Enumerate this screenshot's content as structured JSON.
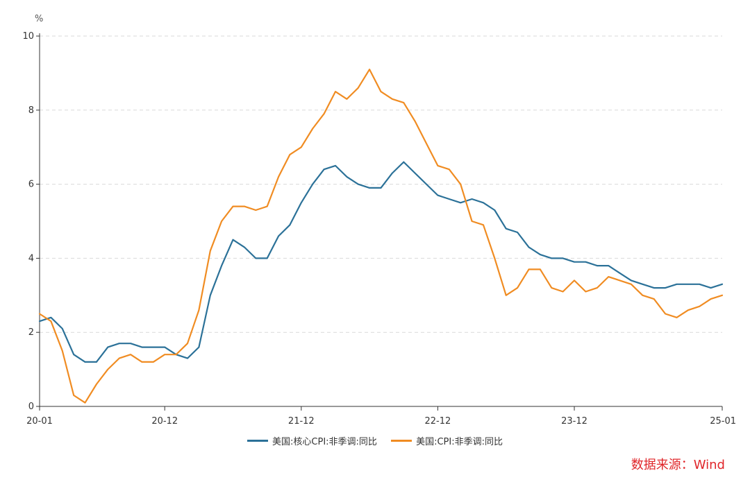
{
  "chart_data": {
    "type": "line",
    "unit_label": "%",
    "ylim": [
      0,
      10
    ],
    "yticks": [
      0,
      2,
      4,
      6,
      8,
      10
    ],
    "grid": true,
    "legend_position": "bottom",
    "xticks": [
      {
        "index": 0,
        "label": "20-01"
      },
      {
        "index": 11,
        "label": "20-12"
      },
      {
        "index": 23,
        "label": "21-12"
      },
      {
        "index": 35,
        "label": "22-12"
      },
      {
        "index": 47,
        "label": "23-12"
      },
      {
        "index": 60,
        "label": "25-01"
      }
    ],
    "series": [
      {
        "name": "美国:核心CPI:非季调:同比",
        "color": "#2b7198",
        "values": [
          2.3,
          2.4,
          2.1,
          1.4,
          1.2,
          1.2,
          1.6,
          1.7,
          1.7,
          1.6,
          1.6,
          1.6,
          1.4,
          1.3,
          1.6,
          3.0,
          3.8,
          4.5,
          4.3,
          4.0,
          4.0,
          4.6,
          4.9,
          5.5,
          6.0,
          6.4,
          6.5,
          6.2,
          6.0,
          5.9,
          5.9,
          6.3,
          6.6,
          6.3,
          6.0,
          5.7,
          5.6,
          5.5,
          5.6,
          5.5,
          5.3,
          4.8,
          4.7,
          4.3,
          4.1,
          4.0,
          4.0,
          3.9,
          3.9,
          3.8,
          3.8,
          3.6,
          3.4,
          3.3,
          3.2,
          3.2,
          3.3,
          3.3,
          3.3,
          3.2,
          3.3
        ]
      },
      {
        "name": "美国:CPI:非季调:同比",
        "color": "#f08c22",
        "values": [
          2.5,
          2.3,
          1.5,
          0.3,
          0.1,
          0.6,
          1.0,
          1.3,
          1.4,
          1.2,
          1.2,
          1.4,
          1.4,
          1.7,
          2.6,
          4.2,
          5.0,
          5.4,
          5.4,
          5.3,
          5.4,
          6.2,
          6.8,
          7.0,
          7.5,
          7.9,
          8.5,
          8.3,
          8.6,
          9.1,
          8.5,
          8.3,
          8.2,
          7.7,
          7.1,
          6.5,
          6.4,
          6.0,
          5.0,
          4.9,
          4.0,
          3.0,
          3.2,
          3.7,
          3.7,
          3.2,
          3.1,
          3.4,
          3.1,
          3.2,
          3.5,
          3.4,
          3.3,
          3.0,
          2.9,
          2.5,
          2.4,
          2.6,
          2.7,
          2.9,
          3.0
        ]
      }
    ]
  },
  "source_text": "数据来源：Wind"
}
